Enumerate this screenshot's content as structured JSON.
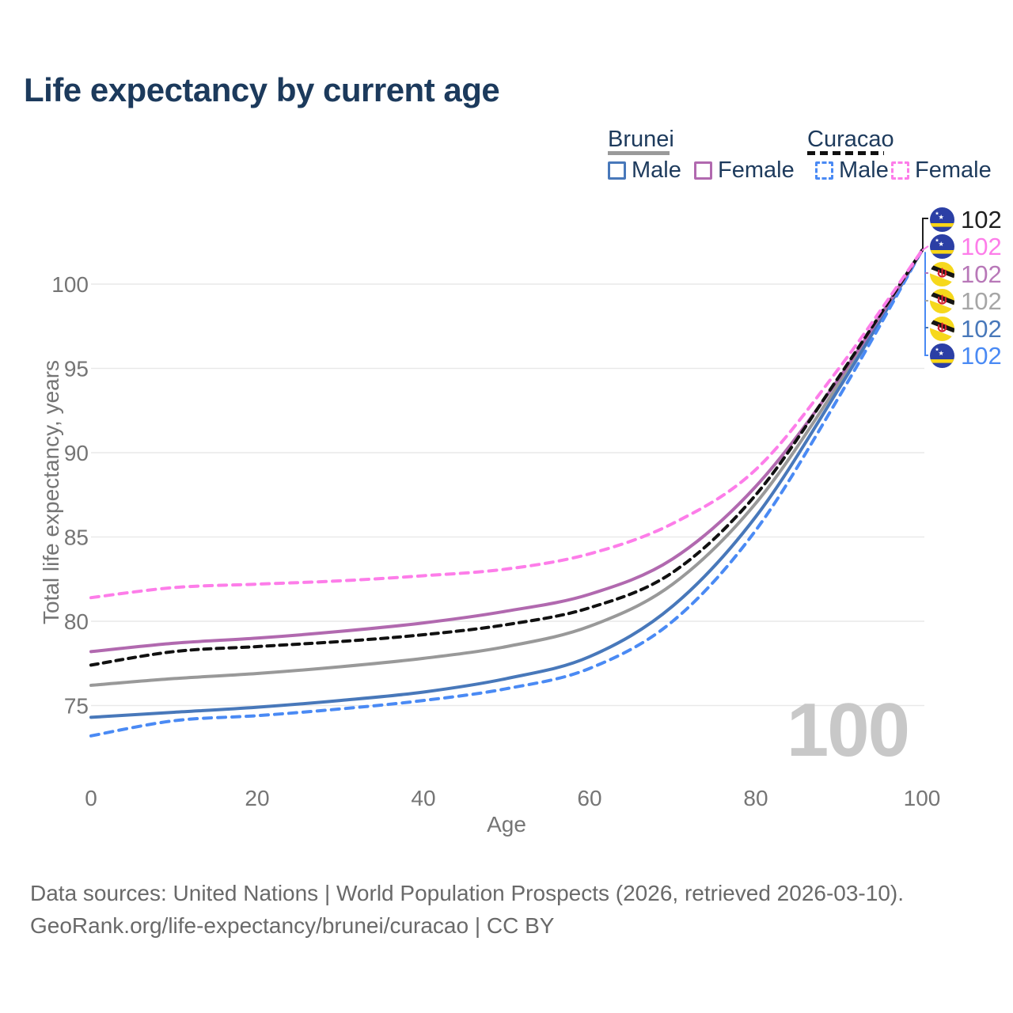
{
  "title": "Life expectancy by current age",
  "legend": {
    "groups": [
      {
        "label": "Brunei",
        "line_style": "solid",
        "line_color": "#9a9a9a",
        "items": [
          {
            "label": "Male",
            "color": "#4878ba",
            "style": "solid"
          },
          {
            "label": "Female",
            "color": "#b169af",
            "style": "solid"
          }
        ]
      },
      {
        "label": "Curacao",
        "line_style": "dashed",
        "line_color": "#111111",
        "items": [
          {
            "label": "Male",
            "color": "#4a8af4",
            "style": "dashed"
          },
          {
            "label": "Female",
            "color": "#fd7de9",
            "style": "dashed"
          }
        ]
      }
    ]
  },
  "chart_data": {
    "type": "line",
    "x": [
      0,
      10,
      20,
      30,
      40,
      50,
      60,
      70,
      80,
      90,
      100
    ],
    "series": [
      {
        "name": "Brunei total",
        "color": "#999999",
        "dash": "none",
        "values": [
          76.2,
          76.6,
          76.9,
          77.3,
          77.8,
          78.5,
          79.7,
          82.2,
          87.0,
          94.1,
          102
        ]
      },
      {
        "name": "Brunei male",
        "color": "#4878ba",
        "dash": "none",
        "values": [
          74.3,
          74.6,
          74.9,
          75.3,
          75.8,
          76.6,
          77.9,
          80.9,
          86.2,
          93.8,
          102
        ]
      },
      {
        "name": "Curacao male",
        "color": "#4a8af4",
        "dash": "10 8",
        "values": [
          73.2,
          74.1,
          74.4,
          74.8,
          75.3,
          76.0,
          77.2,
          80.0,
          85.4,
          93.3,
          102
        ]
      },
      {
        "name": "Brunei female",
        "color": "#b169af",
        "dash": "none",
        "values": [
          78.2,
          78.7,
          79.0,
          79.4,
          79.9,
          80.6,
          81.6,
          83.7,
          88.0,
          94.4,
          102
        ]
      },
      {
        "name": "Curacao total",
        "color": "#111111",
        "dash": "9 7",
        "values": [
          77.4,
          78.2,
          78.5,
          78.8,
          79.2,
          79.8,
          80.8,
          82.9,
          87.5,
          94.5,
          102
        ]
      },
      {
        "name": "Curacao female",
        "color": "#fd7de9",
        "dash": "10 8",
        "values": [
          81.4,
          82.0,
          82.2,
          82.4,
          82.7,
          83.1,
          84.0,
          85.8,
          89.0,
          95.0,
          102
        ]
      }
    ],
    "xlabel": "Age",
    "ylabel": "Total life expectancy, years",
    "xticks": [
      0,
      20,
      40,
      60,
      80,
      100
    ],
    "yticks": [
      75,
      80,
      85,
      90,
      95,
      100
    ],
    "xlim": [
      0,
      100
    ],
    "ylim": [
      73,
      103
    ],
    "grid": true,
    "legend_position": "top-right",
    "watermark": "100"
  },
  "right_labels": [
    {
      "value": "102",
      "color": "#1f1f1f",
      "flag": "curacao"
    },
    {
      "value": "102",
      "color": "#fd7de9",
      "flag": "curacao"
    },
    {
      "value": "102",
      "color": "#b878b8",
      "flag": "brunei"
    },
    {
      "value": "102",
      "color": "#a6a6a6",
      "flag": "brunei"
    },
    {
      "value": "102",
      "color": "#4878ba",
      "flag": "brunei"
    },
    {
      "value": "102",
      "color": "#4a8af4",
      "flag": "curacao"
    }
  ],
  "footer": {
    "line1": "Data sources: United Nations | World Population Prospects (2026, retrieved 2026-03-10).",
    "line2": "GeoRank.org/life-expectancy/brunei/curacao | CC BY"
  }
}
